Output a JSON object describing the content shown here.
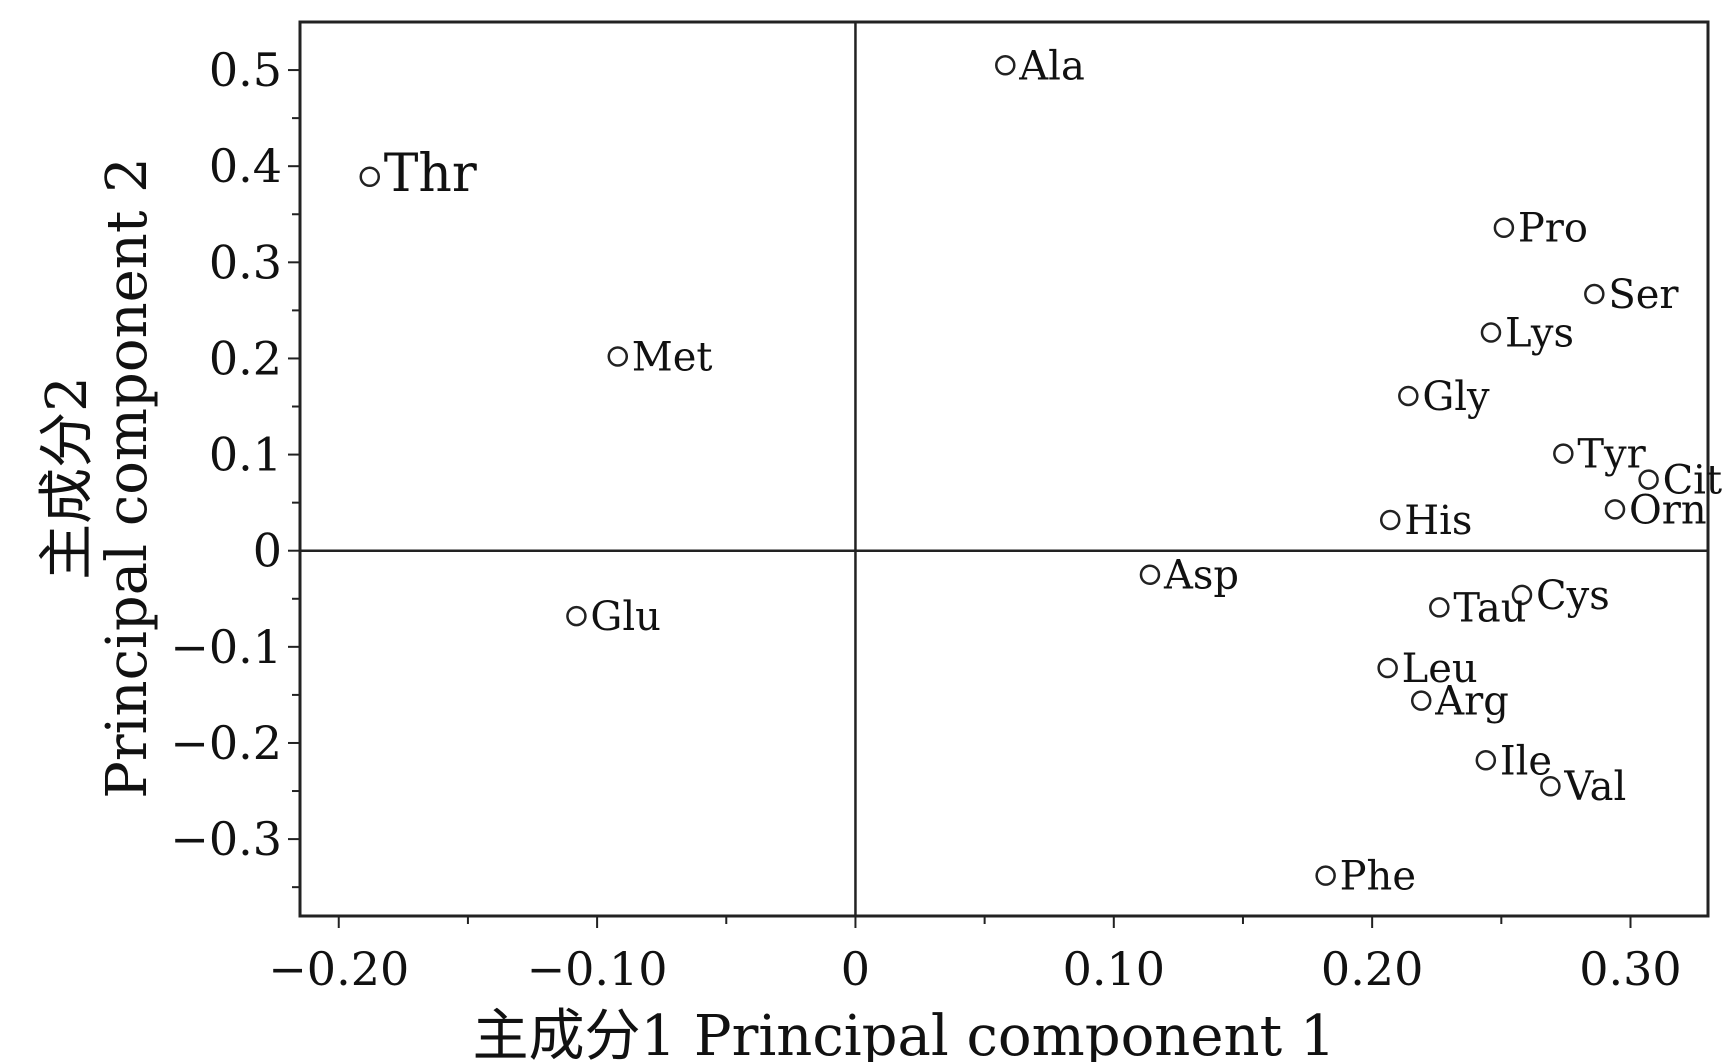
{
  "chart_data": {
    "type": "scatter",
    "xlabel": "主成分1  Principal component 1",
    "ylabel_zh": "主成分2",
    "ylabel_en": "Principal component 2",
    "xlim": [
      -0.215,
      0.33
    ],
    "ylim": [
      -0.38,
      0.55
    ],
    "x_ticks": [
      -0.2,
      -0.1,
      0,
      0.1,
      0.2,
      0.3
    ],
    "x_tick_labels": [
      "−0.20",
      "−0.10",
      "0",
      "0.10",
      "0.20",
      "0.30"
    ],
    "y_ticks": [
      0.5,
      0.4,
      0.3,
      0.2,
      0.1,
      0,
      -0.1,
      -0.2,
      -0.3
    ],
    "y_tick_labels": [
      "0.5",
      "0.4",
      "0.3",
      "0.2",
      "0.1",
      "0",
      "−0.1",
      "−0.2",
      "−0.3"
    ],
    "grid": false,
    "reference_lines": {
      "x": 0,
      "y": 0
    },
    "points": [
      {
        "label": "Thr",
        "x": -0.188,
        "y": 0.389
      },
      {
        "label": "Ala",
        "x": 0.058,
        "y": 0.505
      },
      {
        "label": "Met",
        "x": -0.092,
        "y": 0.202
      },
      {
        "label": "Glu",
        "x": -0.108,
        "y": -0.068
      },
      {
        "label": "Pro",
        "x": 0.251,
        "y": 0.336
      },
      {
        "label": "Ser",
        "x": 0.286,
        "y": 0.267
      },
      {
        "label": "Lys",
        "x": 0.246,
        "y": 0.227
      },
      {
        "label": "Gly",
        "x": 0.214,
        "y": 0.161
      },
      {
        "label": "Tyr",
        "x": 0.274,
        "y": 0.101
      },
      {
        "label": "Cit",
        "x": 0.307,
        "y": 0.074
      },
      {
        "label": "His",
        "x": 0.207,
        "y": 0.032
      },
      {
        "label": "Orn",
        "x": 0.294,
        "y": 0.043
      },
      {
        "label": "Asp",
        "x": 0.114,
        "y": -0.025
      },
      {
        "label": "Cys",
        "x": 0.258,
        "y": -0.046
      },
      {
        "label": "Tau",
        "x": 0.226,
        "y": -0.059
      },
      {
        "label": "Leu",
        "x": 0.206,
        "y": -0.122
      },
      {
        "label": "Arg",
        "x": 0.219,
        "y": -0.156
      },
      {
        "label": "Ile",
        "x": 0.244,
        "y": -0.218
      },
      {
        "label": "Val",
        "x": 0.269,
        "y": -0.245
      },
      {
        "label": "Phe",
        "x": 0.182,
        "y": -0.338
      }
    ]
  }
}
